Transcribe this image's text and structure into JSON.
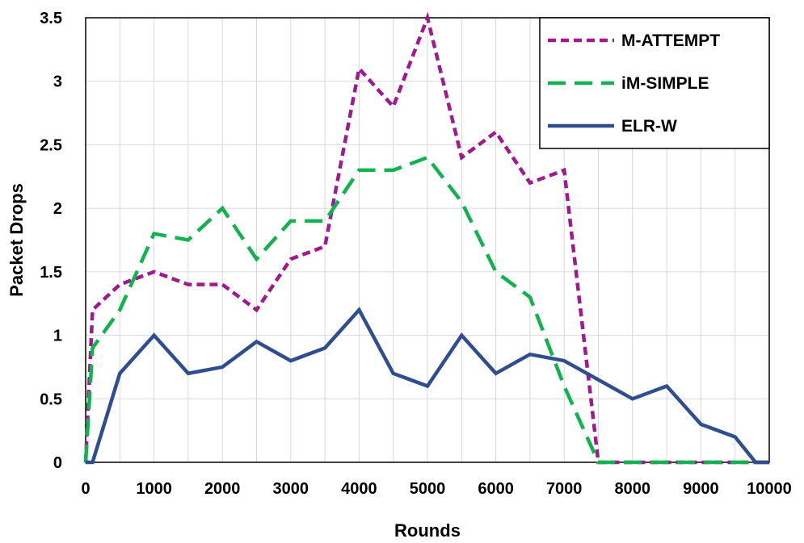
{
  "chart_data": {
    "type": "line",
    "title": "",
    "xlabel": "Rounds",
    "ylabel": "Packet Drops",
    "xlim": [
      0,
      10000
    ],
    "ylim": [
      0,
      3.5
    ],
    "xticks": [
      "0",
      "1000",
      "2000",
      "3000",
      "4000",
      "5000",
      "6000",
      "7000",
      "8000",
      "9000",
      "10000"
    ],
    "yticks": [
      "0",
      "0.5",
      "1",
      "1.5",
      "2",
      "2.5",
      "3",
      "3.5"
    ],
    "grid": true,
    "legend_position": "top-right",
    "series": [
      {
        "name": "M-ATTEMPT",
        "color": "#a0198f",
        "style": "short-dash",
        "x": [
          0,
          100,
          500,
          1000,
          1500,
          2000,
          2500,
          3000,
          3500,
          4000,
          4500,
          5000,
          5500,
          6000,
          6500,
          7000,
          7500,
          8000,
          8500,
          9000,
          9500,
          10000
        ],
        "y": [
          0,
          1.2,
          1.4,
          1.5,
          1.4,
          1.4,
          1.2,
          1.6,
          1.7,
          3.1,
          2.8,
          3.5,
          2.4,
          2.6,
          2.2,
          2.3,
          0,
          0,
          0,
          0,
          0,
          0
        ]
      },
      {
        "name": "iM-SIMPLE",
        "color": "#11b24f",
        "style": "long-dash",
        "x": [
          0,
          100,
          500,
          1000,
          1500,
          2000,
          2500,
          3000,
          3500,
          4000,
          4500,
          5000,
          5500,
          6000,
          6500,
          7000,
          7500,
          8000,
          8500,
          9000,
          9500,
          10000
        ],
        "y": [
          0,
          0.9,
          1.2,
          1.8,
          1.75,
          2.0,
          1.6,
          1.9,
          1.9,
          2.3,
          2.3,
          2.4,
          2.05,
          1.5,
          1.3,
          0.6,
          0,
          0,
          0,
          0,
          0,
          0
        ]
      },
      {
        "name": "ELR-W",
        "color": "#2f4e8f",
        "style": "solid",
        "x": [
          0,
          100,
          500,
          1000,
          1500,
          2000,
          2500,
          3000,
          3500,
          4000,
          4500,
          5000,
          5500,
          6000,
          6500,
          7000,
          7500,
          8000,
          8500,
          9000,
          9500,
          9800,
          10000
        ],
        "y": [
          0,
          0,
          0.7,
          1.0,
          0.7,
          0.75,
          0.95,
          0.8,
          0.9,
          1.2,
          0.7,
          0.6,
          1.0,
          0.7,
          0.85,
          0.8,
          0.65,
          0.5,
          0.6,
          0.3,
          0.2,
          0,
          0
        ]
      }
    ]
  }
}
